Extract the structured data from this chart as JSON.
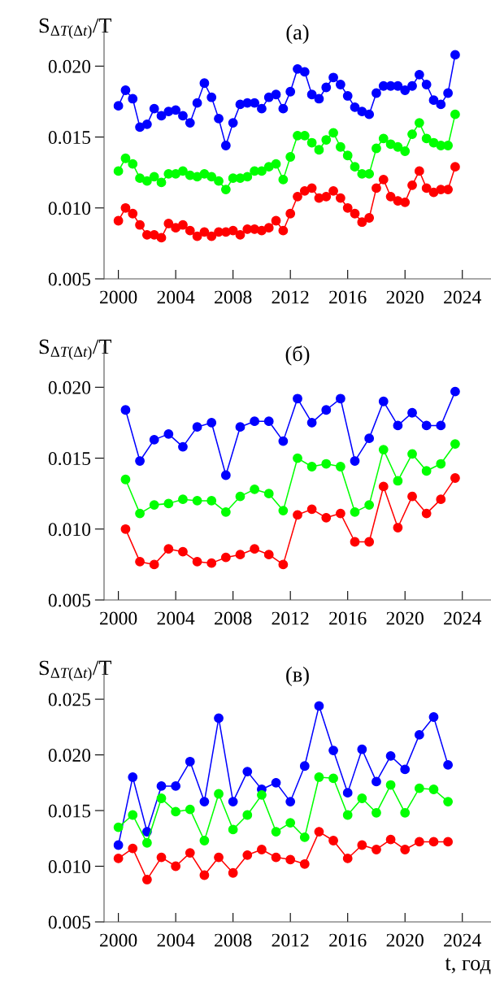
{
  "chart_data": [
    {
      "type": "line",
      "title": "(a)",
      "ylabel": "S$_{ΔT(Δt)}$/T",
      "marker": "circle",
      "line_style": "solid",
      "grid": false,
      "x": [
        2000.0,
        2000.5,
        2001.0,
        2001.5,
        2002.0,
        2002.5,
        2003.0,
        2003.5,
        2004.0,
        2004.5,
        2005.0,
        2005.5,
        2006.0,
        2006.5,
        2007.0,
        2007.5,
        2008.0,
        2008.5,
        2009.0,
        2009.5,
        2010.0,
        2010.5,
        2011.0,
        2011.5,
        2012.0,
        2012.5,
        2013.0,
        2013.5,
        2014.0,
        2014.5,
        2015.0,
        2015.5,
        2016.0,
        2016.5,
        2017.0,
        2017.5,
        2018.0,
        2018.5,
        2019.0,
        2019.5,
        2020.0,
        2020.5,
        2021.0,
        2021.5,
        2022.0,
        2022.5,
        2023.0,
        2023.5
      ],
      "xlim": [
        1999,
        2026
      ],
      "xticks": [
        2000,
        2004,
        2008,
        2012,
        2016,
        2020,
        2024
      ],
      "ylim": [
        0.005,
        0.023
      ],
      "yticks": [
        {
          "value": 0.005,
          "label": "0.005"
        },
        {
          "value": 0.01,
          "label": "0.010"
        },
        {
          "value": 0.015,
          "label": "0.015"
        },
        {
          "value": 0.02,
          "label": "0.020"
        }
      ],
      "series": [
        {
          "color": "#0000ff",
          "values": [
            0.0172,
            0.0183,
            0.0177,
            0.0157,
            0.0159,
            0.017,
            0.0165,
            0.0168,
            0.0169,
            0.0165,
            0.016,
            0.0174,
            0.0188,
            0.0178,
            0.0163,
            0.0144,
            0.016,
            0.0173,
            0.0174,
            0.0174,
            0.017,
            0.0178,
            0.018,
            0.017,
            0.0182,
            0.0198,
            0.0196,
            0.018,
            0.0177,
            0.0185,
            0.0192,
            0.0187,
            0.0179,
            0.0171,
            0.0168,
            0.0166,
            0.0181,
            0.0186,
            0.0186,
            0.0186,
            0.0183,
            0.0186,
            0.0194,
            0.0187,
            0.0176,
            0.0173,
            0.0181,
            0.0208
          ]
        },
        {
          "color": "#00ff00",
          "values": [
            0.0126,
            0.0135,
            0.0131,
            0.0121,
            0.0119,
            0.0122,
            0.0118,
            0.0124,
            0.0124,
            0.0126,
            0.0123,
            0.0122,
            0.0124,
            0.0122,
            0.0119,
            0.0113,
            0.0121,
            0.0121,
            0.0122,
            0.0126,
            0.0126,
            0.0129,
            0.0131,
            0.012,
            0.0136,
            0.0151,
            0.0151,
            0.0146,
            0.0141,
            0.0148,
            0.0153,
            0.0143,
            0.0137,
            0.0129,
            0.0124,
            0.0124,
            0.0142,
            0.0149,
            0.0145,
            0.0143,
            0.014,
            0.0152,
            0.016,
            0.0149,
            0.0146,
            0.0144,
            0.0144,
            0.0166
          ]
        },
        {
          "color": "#ff0000",
          "values": [
            0.0091,
            0.01,
            0.0096,
            0.0088,
            0.0081,
            0.0081,
            0.0079,
            0.0089,
            0.0086,
            0.0088,
            0.0084,
            0.008,
            0.0083,
            0.008,
            0.0083,
            0.0083,
            0.0084,
            0.0081,
            0.0085,
            0.0085,
            0.0084,
            0.0086,
            0.0091,
            0.0084,
            0.0096,
            0.0108,
            0.0112,
            0.0114,
            0.0107,
            0.0108,
            0.0112,
            0.0107,
            0.01,
            0.0096,
            0.009,
            0.0093,
            0.0114,
            0.012,
            0.0108,
            0.0105,
            0.0104,
            0.0116,
            0.0126,
            0.0114,
            0.0111,
            0.0113,
            0.0113,
            0.0129
          ]
        }
      ]
    },
    {
      "type": "line",
      "title": "(б)",
      "ylabel": "S$_{ΔT(Δt)}$/T",
      "marker": "circle",
      "line_style": "solid",
      "grid": false,
      "x": [
        2000.5,
        2001.5,
        2002.5,
        2003.5,
        2004.5,
        2005.5,
        2006.5,
        2007.5,
        2008.5,
        2009.5,
        2010.5,
        2011.5,
        2012.5,
        2013.5,
        2014.5,
        2015.5,
        2016.5,
        2017.5,
        2018.5,
        2019.5,
        2020.5,
        2021.5,
        2022.5,
        2023.5
      ],
      "xlim": [
        1999,
        2026
      ],
      "xticks": [
        2000,
        2004,
        2008,
        2012,
        2016,
        2020,
        2024
      ],
      "ylim": [
        0.005,
        0.023
      ],
      "yticks": [
        {
          "value": 0.005,
          "label": "0.005"
        },
        {
          "value": 0.01,
          "label": "0.010"
        },
        {
          "value": 0.015,
          "label": "0.015"
        },
        {
          "value": 0.02,
          "label": "0.020"
        }
      ],
      "series": [
        {
          "color": "#0000ff",
          "values": [
            0.0184,
            0.0148,
            0.0163,
            0.0167,
            0.0158,
            0.0172,
            0.0175,
            0.0138,
            0.0172,
            0.0176,
            0.0176,
            0.0162,
            0.0192,
            0.0175,
            0.0184,
            0.0192,
            0.0148,
            0.0164,
            0.019,
            0.0173,
            0.0182,
            0.0173,
            0.0173,
            0.0197
          ]
        },
        {
          "color": "#00ff00",
          "values": [
            0.0135,
            0.0111,
            0.0117,
            0.0118,
            0.0121,
            0.012,
            0.012,
            0.0112,
            0.0123,
            0.0128,
            0.0125,
            0.0113,
            0.015,
            0.0144,
            0.0146,
            0.0144,
            0.0112,
            0.0117,
            0.0156,
            0.0134,
            0.0153,
            0.0141,
            0.0146,
            0.016
          ]
        },
        {
          "color": "#ff0000",
          "values": [
            0.01,
            0.0077,
            0.0075,
            0.0086,
            0.0084,
            0.0077,
            0.0076,
            0.008,
            0.0082,
            0.0086,
            0.0082,
            0.0075,
            0.011,
            0.0114,
            0.0108,
            0.0111,
            0.0091,
            0.0091,
            0.013,
            0.0101,
            0.0123,
            0.0111,
            0.0121,
            0.0136
          ]
        }
      ]
    },
    {
      "type": "line",
      "title": "(в)",
      "ylabel": "S$_{ΔT(Δt)}$/T",
      "xlabel": "t, год",
      "marker": "circle",
      "line_style": "solid",
      "grid": false,
      "x": [
        2000,
        2001,
        2002,
        2003,
        2004,
        2005,
        2006,
        2007,
        2008,
        2009,
        2010,
        2011,
        2012,
        2013,
        2014,
        2015,
        2016,
        2017,
        2018,
        2019,
        2020,
        2021,
        2022,
        2023
      ],
      "xlim": [
        1999,
        2026
      ],
      "xticks": [
        2000,
        2004,
        2008,
        2012,
        2016,
        2020,
        2024
      ],
      "ylim": [
        0.005,
        0.028
      ],
      "yticks": [
        {
          "value": 0.005,
          "label": "0.005"
        },
        {
          "value": 0.01,
          "label": "0.010"
        },
        {
          "value": 0.015,
          "label": "0.015"
        },
        {
          "value": 0.02,
          "label": "0.020"
        },
        {
          "value": 0.025,
          "label": "0.025"
        }
      ],
      "series": [
        {
          "color": "#0000ff",
          "values": [
            0.0119,
            0.018,
            0.0131,
            0.0172,
            0.0172,
            0.0194,
            0.0158,
            0.0233,
            0.0158,
            0.0185,
            0.0169,
            0.0175,
            0.0158,
            0.019,
            0.0244,
            0.0204,
            0.0166,
            0.0205,
            0.0176,
            0.0199,
            0.0187,
            0.0218,
            0.0234,
            0.0191
          ]
        },
        {
          "color": "#00ff00",
          "values": [
            0.0135,
            0.0146,
            0.0121,
            0.0161,
            0.0149,
            0.0151,
            0.0123,
            0.0165,
            0.0133,
            0.0146,
            0.0164,
            0.0131,
            0.0139,
            0.0126,
            0.018,
            0.0179,
            0.0146,
            0.0161,
            0.0148,
            0.0173,
            0.0148,
            0.017,
            0.0169,
            0.0158
          ]
        },
        {
          "color": "#ff0000",
          "values": [
            0.0107,
            0.0116,
            0.0088,
            0.0108,
            0.01,
            0.0112,
            0.0092,
            0.0108,
            0.0094,
            0.011,
            0.0115,
            0.0108,
            0.0106,
            0.0102,
            0.0131,
            0.0123,
            0.0107,
            0.0119,
            0.0115,
            0.0124,
            0.0115,
            0.0122,
            0.0122,
            0.0122
          ]
        }
      ]
    }
  ]
}
